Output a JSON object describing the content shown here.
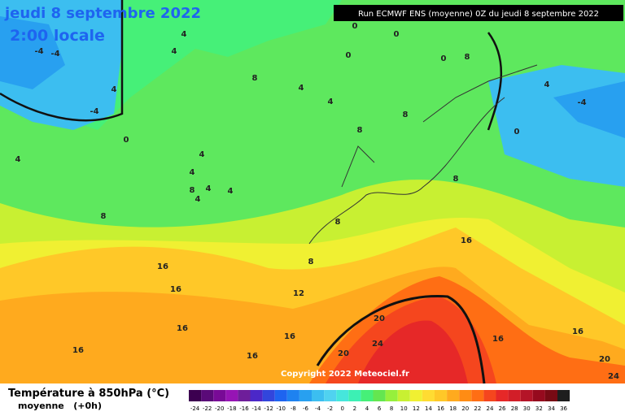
{
  "header": {
    "title": "jeudi 8 septembre 2022",
    "time": "2:00 locale",
    "run": "Run ECMWF ENS (moyenne) 0Z du jeudi 8 septembre 2022",
    "copyright": "Copyright 2022 Meteociel.fr"
  },
  "legend": {
    "title": "Température à 850hPa (°C)",
    "subtitle": "moyenne   (+0h)",
    "labels": [
      -24,
      -22,
      -20,
      -18,
      -16,
      -14,
      -12,
      -10,
      -8,
      -6,
      -4,
      -2,
      0,
      2,
      4,
      6,
      8,
      10,
      12,
      14,
      16,
      18,
      20,
      22,
      24,
      26,
      28,
      30,
      32,
      34,
      36
    ],
    "colors": [
      "#3c0050",
      "#5a0a78",
      "#780a96",
      "#9614b4",
      "#6e1e9a",
      "#4b28c8",
      "#3246dc",
      "#1e64f0",
      "#1e82f0",
      "#28a0f0",
      "#3cbef0",
      "#50d2f0",
      "#46e6dc",
      "#3cf0b4",
      "#46f078",
      "#64e650",
      "#96f03c",
      "#c8f032",
      "#f0f032",
      "#ffdc32",
      "#ffc828",
      "#ffaa1e",
      "#ff8c14",
      "#ff6e14",
      "#f5461e",
      "#e62828",
      "#d21e28",
      "#b41428",
      "#960a1e",
      "#780a14",
      "#1e1e1e"
    ]
  },
  "map": {
    "contour_labels": [
      -4,
      -4,
      4,
      4,
      -4,
      0,
      4,
      4,
      0,
      0,
      0,
      4,
      8,
      4,
      4,
      8,
      4,
      0,
      -4,
      0,
      4,
      4,
      4,
      8,
      8,
      4,
      8,
      8,
      8,
      8,
      16,
      16,
      16,
      12,
      16,
      16,
      16,
      8,
      16,
      20,
      20,
      24,
      16,
      16,
      20,
      24
    ]
  }
}
